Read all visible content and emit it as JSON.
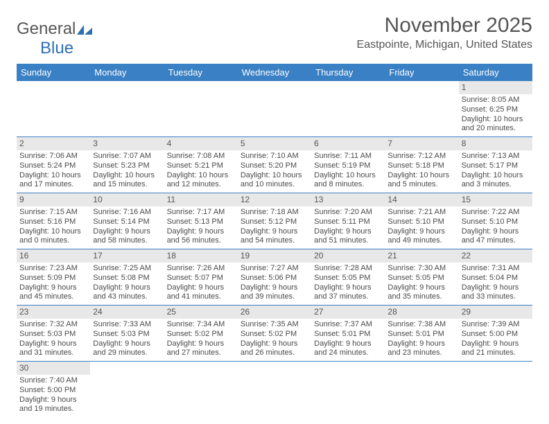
{
  "brand": {
    "part1": "General",
    "part2": "Blue"
  },
  "header": {
    "month_title": "November 2025",
    "location": "Eastpointe, Michigan, United States"
  },
  "colors": {
    "header_bg": "#3a80c4",
    "header_text": "#ffffff",
    "daynum_bg": "#e8e8e8",
    "row_border": "#3a80c4",
    "body_text": "#4a4a4a",
    "title_text": "#555555",
    "brand_accent": "#2d6fb4"
  },
  "typography": {
    "month_title_size": 30,
    "location_size": 16,
    "weekday_size": 13,
    "cell_size": 11,
    "font_family": "Arial"
  },
  "calendar": {
    "weekdays": [
      "Sunday",
      "Monday",
      "Tuesday",
      "Wednesday",
      "Thursday",
      "Friday",
      "Saturday"
    ],
    "rows": [
      [
        {
          "day": "",
          "text": ""
        },
        {
          "day": "",
          "text": ""
        },
        {
          "day": "",
          "text": ""
        },
        {
          "day": "",
          "text": ""
        },
        {
          "day": "",
          "text": ""
        },
        {
          "day": "",
          "text": ""
        },
        {
          "day": "1",
          "text": "Sunrise: 8:05 AM\nSunset: 6:25 PM\nDaylight: 10 hours and 20 minutes."
        }
      ],
      [
        {
          "day": "2",
          "text": "Sunrise: 7:06 AM\nSunset: 5:24 PM\nDaylight: 10 hours and 17 minutes."
        },
        {
          "day": "3",
          "text": "Sunrise: 7:07 AM\nSunset: 5:23 PM\nDaylight: 10 hours and 15 minutes."
        },
        {
          "day": "4",
          "text": "Sunrise: 7:08 AM\nSunset: 5:21 PM\nDaylight: 10 hours and 12 minutes."
        },
        {
          "day": "5",
          "text": "Sunrise: 7:10 AM\nSunset: 5:20 PM\nDaylight: 10 hours and 10 minutes."
        },
        {
          "day": "6",
          "text": "Sunrise: 7:11 AM\nSunset: 5:19 PM\nDaylight: 10 hours and 8 minutes."
        },
        {
          "day": "7",
          "text": "Sunrise: 7:12 AM\nSunset: 5:18 PM\nDaylight: 10 hours and 5 minutes."
        },
        {
          "day": "8",
          "text": "Sunrise: 7:13 AM\nSunset: 5:17 PM\nDaylight: 10 hours and 3 minutes."
        }
      ],
      [
        {
          "day": "9",
          "text": "Sunrise: 7:15 AM\nSunset: 5:16 PM\nDaylight: 10 hours and 0 minutes."
        },
        {
          "day": "10",
          "text": "Sunrise: 7:16 AM\nSunset: 5:14 PM\nDaylight: 9 hours and 58 minutes."
        },
        {
          "day": "11",
          "text": "Sunrise: 7:17 AM\nSunset: 5:13 PM\nDaylight: 9 hours and 56 minutes."
        },
        {
          "day": "12",
          "text": "Sunrise: 7:18 AM\nSunset: 5:12 PM\nDaylight: 9 hours and 54 minutes."
        },
        {
          "day": "13",
          "text": "Sunrise: 7:20 AM\nSunset: 5:11 PM\nDaylight: 9 hours and 51 minutes."
        },
        {
          "day": "14",
          "text": "Sunrise: 7:21 AM\nSunset: 5:10 PM\nDaylight: 9 hours and 49 minutes."
        },
        {
          "day": "15",
          "text": "Sunrise: 7:22 AM\nSunset: 5:10 PM\nDaylight: 9 hours and 47 minutes."
        }
      ],
      [
        {
          "day": "16",
          "text": "Sunrise: 7:23 AM\nSunset: 5:09 PM\nDaylight: 9 hours and 45 minutes."
        },
        {
          "day": "17",
          "text": "Sunrise: 7:25 AM\nSunset: 5:08 PM\nDaylight: 9 hours and 43 minutes."
        },
        {
          "day": "18",
          "text": "Sunrise: 7:26 AM\nSunset: 5:07 PM\nDaylight: 9 hours and 41 minutes."
        },
        {
          "day": "19",
          "text": "Sunrise: 7:27 AM\nSunset: 5:06 PM\nDaylight: 9 hours and 39 minutes."
        },
        {
          "day": "20",
          "text": "Sunrise: 7:28 AM\nSunset: 5:05 PM\nDaylight: 9 hours and 37 minutes."
        },
        {
          "day": "21",
          "text": "Sunrise: 7:30 AM\nSunset: 5:05 PM\nDaylight: 9 hours and 35 minutes."
        },
        {
          "day": "22",
          "text": "Sunrise: 7:31 AM\nSunset: 5:04 PM\nDaylight: 9 hours and 33 minutes."
        }
      ],
      [
        {
          "day": "23",
          "text": "Sunrise: 7:32 AM\nSunset: 5:03 PM\nDaylight: 9 hours and 31 minutes."
        },
        {
          "day": "24",
          "text": "Sunrise: 7:33 AM\nSunset: 5:03 PM\nDaylight: 9 hours and 29 minutes."
        },
        {
          "day": "25",
          "text": "Sunrise: 7:34 AM\nSunset: 5:02 PM\nDaylight: 9 hours and 27 minutes."
        },
        {
          "day": "26",
          "text": "Sunrise: 7:35 AM\nSunset: 5:02 PM\nDaylight: 9 hours and 26 minutes."
        },
        {
          "day": "27",
          "text": "Sunrise: 7:37 AM\nSunset: 5:01 PM\nDaylight: 9 hours and 24 minutes."
        },
        {
          "day": "28",
          "text": "Sunrise: 7:38 AM\nSunset: 5:01 PM\nDaylight: 9 hours and 23 minutes."
        },
        {
          "day": "29",
          "text": "Sunrise: 7:39 AM\nSunset: 5:00 PM\nDaylight: 9 hours and 21 minutes."
        }
      ],
      [
        {
          "day": "30",
          "text": "Sunrise: 7:40 AM\nSunset: 5:00 PM\nDaylight: 9 hours and 19 minutes."
        },
        {
          "day": "",
          "text": ""
        },
        {
          "day": "",
          "text": ""
        },
        {
          "day": "",
          "text": ""
        },
        {
          "day": "",
          "text": ""
        },
        {
          "day": "",
          "text": ""
        },
        {
          "day": "",
          "text": ""
        }
      ]
    ]
  }
}
